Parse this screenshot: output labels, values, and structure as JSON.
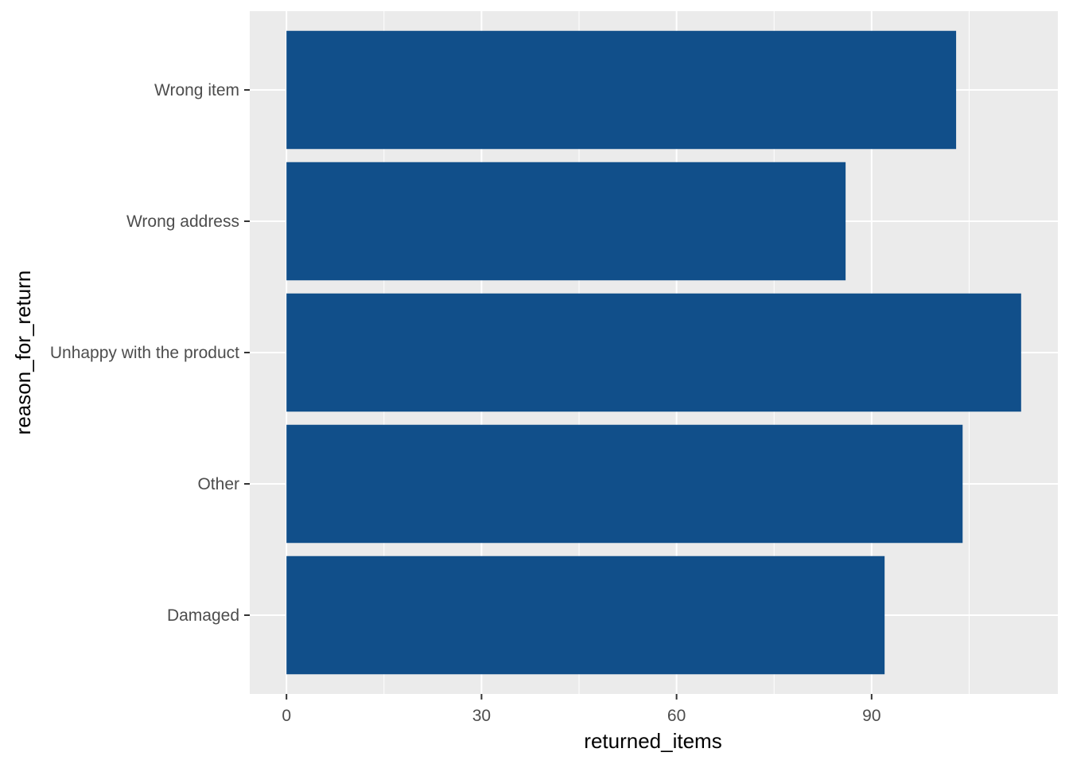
{
  "chart_data": {
    "type": "bar",
    "orientation": "horizontal",
    "categories": [
      "Damaged",
      "Other",
      "Unhappy with the product",
      "Wrong address",
      "Wrong item"
    ],
    "values": [
      92,
      104,
      113,
      86,
      103
    ],
    "title": "",
    "xlabel": "returned_items",
    "ylabel": "reason_for_return",
    "xlim": [
      -5.65,
      118.65
    ],
    "xticks": [
      0,
      30,
      60,
      90
    ],
    "grid": true,
    "legend": "none",
    "colors": {
      "bar": "#114F8A",
      "panel": "#EBEBEB",
      "grid_major": "#FFFFFF",
      "tick_label": "#4D4D4D",
      "tick_mark": "#333333"
    }
  }
}
